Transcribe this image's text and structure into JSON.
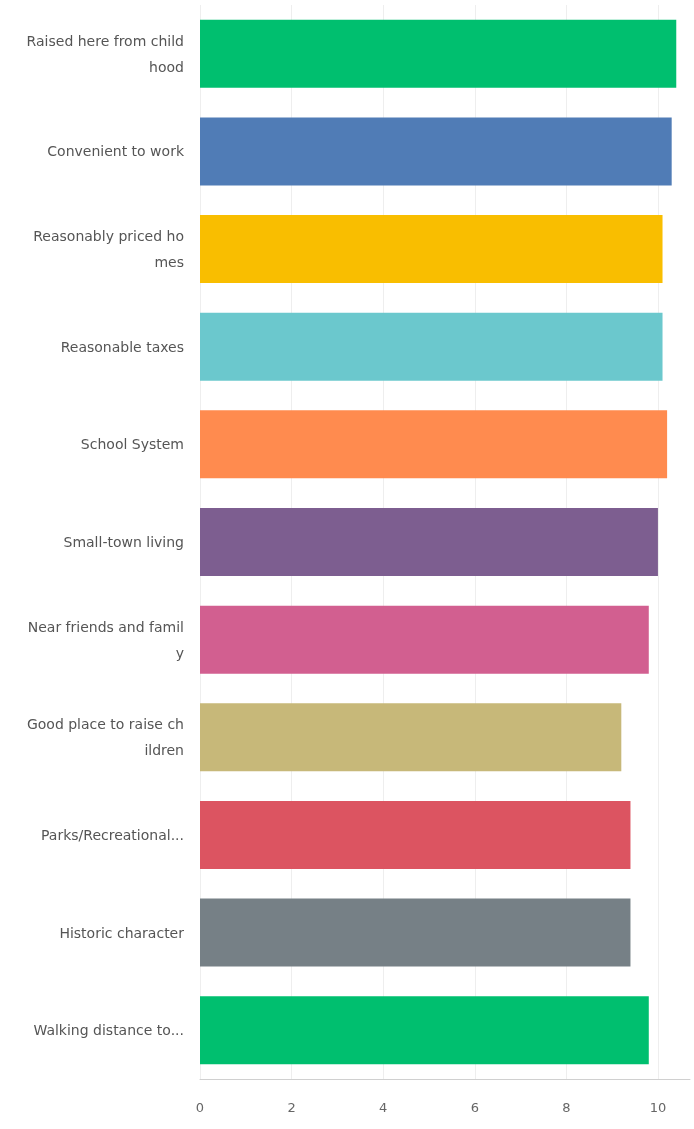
{
  "chart_data": {
    "type": "bar",
    "orientation": "horizontal",
    "categories": [
      "Raised here from childhood",
      "Convenient to work",
      "Reasonably priced homes",
      "Reasonable taxes",
      "School System",
      "Small-town living",
      "Near friends and family",
      "Good place to raise children",
      "Parks/Recreational...",
      "Historic character",
      "Walking distance to..."
    ],
    "values": [
      10.4,
      10.3,
      10.1,
      10.1,
      10.2,
      10.0,
      9.8,
      9.2,
      9.4,
      9.4,
      9.8
    ],
    "colors": [
      "#00bf6f",
      "#507cb6",
      "#f9be00",
      "#6bc8cd",
      "#ff8b4f",
      "#7d5e90",
      "#d25f90",
      "#c7b879",
      "#dc5461",
      "#768086",
      "#00bf6f"
    ],
    "xlim": [
      0,
      10.7
    ],
    "xticks": [
      0,
      2,
      4,
      6,
      8,
      10
    ],
    "grid": "x"
  }
}
